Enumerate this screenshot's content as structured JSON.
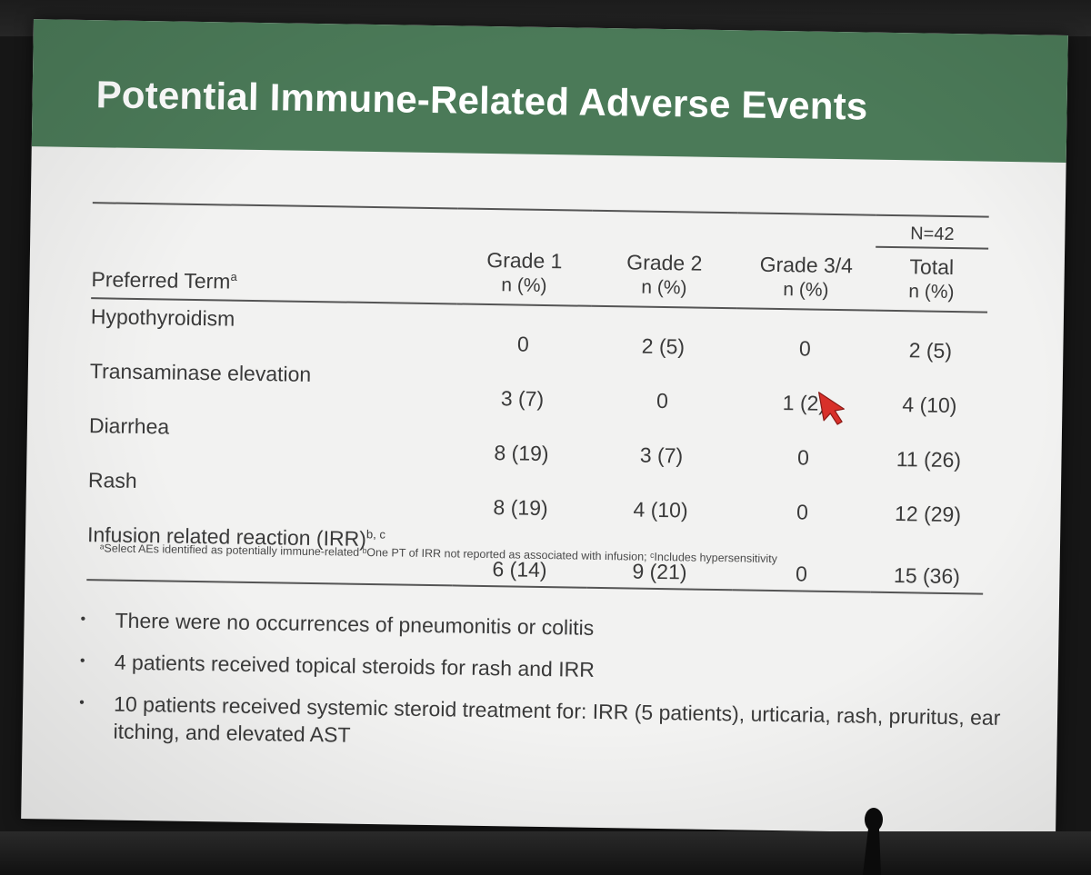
{
  "slide": {
    "title": "Potential Immune-Related Adverse Events",
    "colors": {
      "header_green": "#4b7a58",
      "slide_background": "#f2f2f1",
      "text": "#3a3a3a",
      "pointer": "#d8302a"
    }
  },
  "table": {
    "n_label": "N=42",
    "columns": {
      "term": "Preferred Term",
      "term_sup": "a",
      "grade1": "Grade 1",
      "grade2": "Grade 2",
      "grade34": "Grade 3/4",
      "total": "Total",
      "unit": "n (%)"
    },
    "rows": [
      {
        "term": "Hypothyroidism",
        "sup": "",
        "g1": "0",
        "g2": "2 (5)",
        "g34": "0",
        "total": "2 (5)"
      },
      {
        "term": "Transaminase elevation",
        "sup": "",
        "g1": "3 (7)",
        "g2": "0",
        "g34": "1 (2)",
        "total": "4 (10)"
      },
      {
        "term": "Diarrhea",
        "sup": "",
        "g1": "8 (19)",
        "g2": "3 (7)",
        "g34": "0",
        "total": "11 (26)"
      },
      {
        "term": "Rash",
        "sup": "",
        "g1": "8 (19)",
        "g2": "4 (10)",
        "g34": "0",
        "total": "12 (29)"
      },
      {
        "term": "Infusion related reaction (IRR)",
        "sup": "b, c",
        "g1": "6 (14)",
        "g2": "9 (21)",
        "g34": "0",
        "total": "15 (36)"
      }
    ],
    "footnote": "ᵃSelect AEs identified as potentially immune-related  ᵇOne PT of IRR not reported as associated with infusion; ᶜIncludes hypersensitivity"
  },
  "bullets": [
    "There were no occurrences of pneumonitis or colitis",
    "4 patients received topical steroids for rash and IRR",
    "10 patients received systemic steroid treatment for: IRR (5 patients), urticaria, rash, pruritus, ear itching, and elevated AST"
  ],
  "bullet_glyph": "•",
  "icons": {
    "pointer": "red-arrow-pointer-icon"
  }
}
